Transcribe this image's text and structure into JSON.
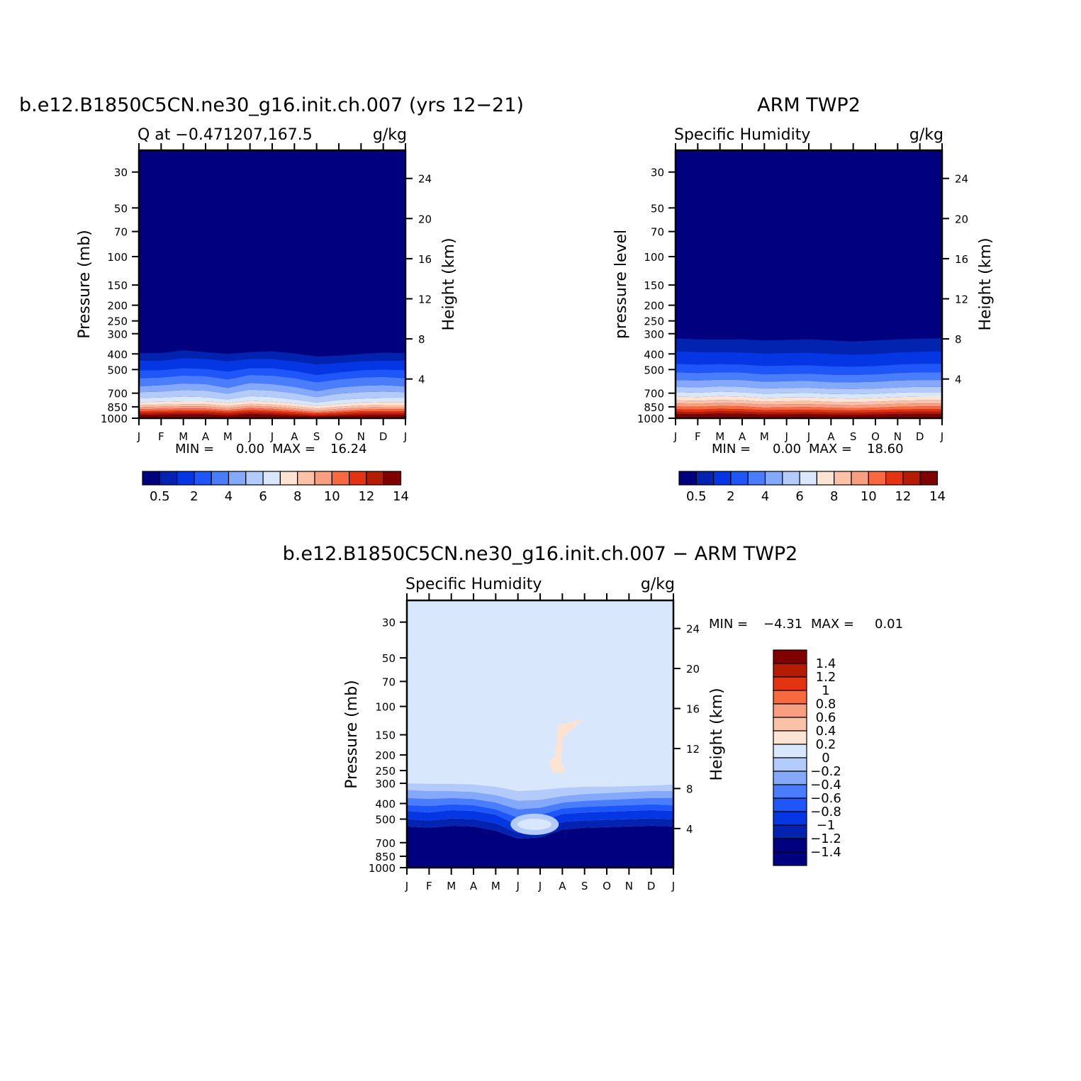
{
  "chart_data": [
    {
      "type": "heatmap",
      "title": "b.e12.B1850C5CN.ne30_g16.init.ch.007 (yrs 12−21)",
      "subtitle_left": "Q at −0.471207,167.5",
      "subtitle_right": "g/kg",
      "xlabel": "",
      "ylabel": "Pressure (mb)",
      "ylabel_right": "Height (km)",
      "x_ticks": [
        "J",
        "F",
        "M",
        "A",
        "M",
        "J",
        "J",
        "A",
        "S",
        "O",
        "N",
        "D",
        "J"
      ],
      "y_ticks": [
        30,
        50,
        70,
        100,
        150,
        200,
        250,
        300,
        400,
        500,
        700,
        850,
        1000
      ],
      "y_right_ticks": [
        24,
        20,
        16,
        12,
        8,
        4
      ],
      "y_scale": "log",
      "ylim": [
        1000,
        22
      ],
      "stats": {
        "min_label": "MIN =",
        "min": "0.00",
        "max_label": "MAX =",
        "max": "16.24"
      },
      "colorbar": {
        "orientation": "horizontal",
        "tick_labels": [
          "0.5",
          "2",
          "4",
          "6",
          "8",
          "10",
          "12",
          "14"
        ]
      },
      "contours_mb": {
        "months": [
          0,
          1,
          2,
          3,
          4,
          5,
          6,
          7,
          8,
          9,
          10,
          11,
          12
        ],
        "q0.5": [
          395,
          395,
          380,
          390,
          400,
          390,
          385,
          398,
          415,
          410,
          400,
          393,
          395
        ],
        "q1": [
          440,
          440,
          425,
          430,
          445,
          430,
          430,
          445,
          465,
          455,
          445,
          440,
          440
        ],
        "q2": [
          505,
          505,
          490,
          495,
          515,
          490,
          490,
          510,
          540,
          520,
          505,
          500,
          505
        ],
        "q3": [
          565,
          560,
          545,
          550,
          575,
          540,
          545,
          565,
          600,
          575,
          560,
          555,
          565
        ],
        "q4": [
          635,
          625,
          610,
          615,
          650,
          605,
          615,
          640,
          680,
          645,
          630,
          625,
          635
        ],
        "q5": [
          690,
          685,
          670,
          675,
          705,
          665,
          675,
          700,
          740,
          705,
          690,
          685,
          690
        ],
        "q6": [
          750,
          745,
          735,
          740,
          765,
          730,
          740,
          765,
          800,
          770,
          755,
          750,
          750
        ],
        "q7": [
          795,
          790,
          785,
          785,
          805,
          780,
          790,
          810,
          840,
          815,
          800,
          795,
          795
        ],
        "q8": [
          830,
          825,
          820,
          820,
          840,
          815,
          825,
          845,
          870,
          850,
          835,
          830,
          830
        ],
        "q9": [
          855,
          850,
          845,
          845,
          865,
          840,
          850,
          870,
          895,
          875,
          860,
          855,
          855
        ],
        "q10": [
          880,
          875,
          870,
          870,
          890,
          865,
          875,
          895,
          915,
          900,
          885,
          880,
          880
        ],
        "q11": [
          905,
          900,
          895,
          895,
          910,
          890,
          900,
          915,
          935,
          920,
          905,
          905,
          905
        ],
        "q12": [
          930,
          925,
          920,
          920,
          935,
          915,
          925,
          940,
          955,
          945,
          930,
          930,
          930
        ],
        "q13": [
          955,
          950,
          945,
          945,
          960,
          940,
          950,
          962,
          972,
          965,
          955,
          955,
          955
        ],
        "q14": [
          975,
          972,
          968,
          968,
          978,
          965,
          972,
          980,
          988,
          983,
          976,
          975,
          975
        ]
      }
    },
    {
      "type": "heatmap",
      "title": "ARM TWP2",
      "subtitle_left": "Specific Humidity",
      "subtitle_right": "g/kg",
      "xlabel": "",
      "ylabel": "pressure level",
      "ylabel_right": "Height (km)",
      "x_ticks": [
        "J",
        "F",
        "M",
        "A",
        "M",
        "J",
        "J",
        "A",
        "S",
        "O",
        "N",
        "D",
        "J"
      ],
      "y_ticks": [
        30,
        50,
        70,
        100,
        150,
        200,
        250,
        300,
        400,
        500,
        700,
        850,
        1000
      ],
      "y_right_ticks": [
        24,
        20,
        16,
        12,
        8,
        4
      ],
      "y_scale": "log",
      "ylim": [
        1000,
        22
      ],
      "stats": {
        "min_label": "MIN =",
        "min": "0.00",
        "max_label": "MAX =",
        "max": "18.60"
      },
      "colorbar": {
        "orientation": "horizontal",
        "tick_labels": [
          "0.5",
          "2",
          "4",
          "6",
          "8",
          "10",
          "12",
          "14"
        ]
      },
      "contours_mb": {
        "months": [
          0,
          1,
          2,
          3,
          4,
          5,
          6,
          7,
          8,
          9,
          10,
          11,
          12
        ],
        "q0.5": [
          320,
          325,
          325,
          325,
          330,
          328,
          325,
          330,
          335,
          330,
          325,
          322,
          320
        ],
        "q1": [
          385,
          390,
          390,
          392,
          398,
          395,
          393,
          400,
          405,
          400,
          392,
          388,
          385
        ],
        "q2": [
          460,
          465,
          462,
          465,
          475,
          472,
          470,
          478,
          480,
          475,
          465,
          460,
          460
        ],
        "q3": [
          520,
          525,
          520,
          522,
          535,
          532,
          530,
          538,
          540,
          535,
          525,
          520,
          520
        ],
        "q4": [
          580,
          585,
          578,
          580,
          595,
          590,
          588,
          598,
          600,
          595,
          585,
          580,
          580
        ],
        "q5": [
          640,
          645,
          635,
          640,
          655,
          650,
          648,
          658,
          660,
          655,
          645,
          640,
          640
        ],
        "q6": [
          690,
          695,
          685,
          690,
          705,
          700,
          698,
          708,
          710,
          705,
          695,
          690,
          690
        ],
        "q7": [
          735,
          740,
          730,
          735,
          750,
          745,
          743,
          752,
          755,
          750,
          740,
          735,
          735
        ],
        "q8": [
          775,
          780,
          770,
          775,
          790,
          785,
          783,
          792,
          795,
          790,
          780,
          775,
          775
        ],
        "q9": [
          810,
          815,
          805,
          810,
          825,
          820,
          818,
          826,
          830,
          825,
          815,
          810,
          810
        ],
        "q10": [
          845,
          850,
          840,
          845,
          860,
          855,
          853,
          860,
          865,
          860,
          850,
          845,
          845
        ],
        "q11": [
          880,
          885,
          875,
          880,
          890,
          888,
          886,
          892,
          895,
          890,
          882,
          880,
          880
        ],
        "q12": [
          910,
          915,
          905,
          910,
          920,
          918,
          916,
          922,
          925,
          920,
          912,
          910,
          910
        ],
        "q13": [
          940,
          943,
          935,
          940,
          948,
          946,
          944,
          950,
          952,
          948,
          942,
          940,
          940
        ],
        "q14": [
          965,
          968,
          962,
          965,
          972,
          970,
          968,
          973,
          975,
          972,
          966,
          965,
          965
        ]
      }
    },
    {
      "type": "heatmap",
      "title": "b.e12.B1850C5CN.ne30_g16.init.ch.007 − ARM TWP2",
      "subtitle_left": "Specific Humidity",
      "subtitle_right": "g/kg",
      "xlabel": "",
      "ylabel": "Pressure (mb)",
      "ylabel_right": "Height (km)",
      "x_ticks": [
        "J",
        "F",
        "M",
        "A",
        "M",
        "J",
        "J",
        "A",
        "S",
        "O",
        "N",
        "D",
        "J"
      ],
      "y_ticks": [
        30,
        50,
        70,
        100,
        150,
        200,
        250,
        300,
        400,
        500,
        700,
        850,
        1000
      ],
      "y_right_ticks": [
        24,
        20,
        16,
        12,
        8,
        4
      ],
      "y_scale": "log",
      "ylim": [
        1000,
        22
      ],
      "stats": {
        "min_label": "MIN =",
        "min": "−4.31",
        "max_label": "MAX =",
        "max": "0.01"
      },
      "colorbar": {
        "orientation": "vertical",
        "tick_labels": [
          "1.4",
          "1.2",
          "1",
          "0.8",
          "0.6",
          "0.4",
          "0.2",
          "0",
          "−0.2",
          "−0.4",
          "−0.6",
          "−0.8",
          "−1",
          "−1.2",
          "−1.4"
        ]
      },
      "contours_mb": {
        "months": [
          0,
          1,
          2,
          3,
          4,
          5,
          6,
          7,
          8,
          9,
          10,
          11,
          12
        ],
        "d-0.2": [
          300,
          302,
          302,
          305,
          315,
          335,
          330,
          320,
          315,
          315,
          312,
          310,
          305
        ],
        "d-0.4": [
          330,
          335,
          335,
          340,
          355,
          385,
          380,
          360,
          350,
          345,
          340,
          335,
          335
        ],
        "d-0.6": [
          370,
          375,
          370,
          375,
          395,
          435,
          425,
          395,
          385,
          380,
          375,
          370,
          370
        ],
        "d-0.8": [
          410,
          415,
          405,
          410,
          435,
          490,
          470,
          430,
          420,
          415,
          410,
          405,
          410
        ],
        "d-1": [
          445,
          455,
          440,
          445,
          470,
          545,
          520,
          465,
          455,
          450,
          445,
          440,
          445
        ],
        "d-1.2": [
          500,
          510,
          495,
          500,
          530,
          610,
          590,
          520,
          510,
          505,
          500,
          495,
          500
        ],
        "d-1.4": [
          555,
          565,
          550,
          555,
          590,
          660,
          650,
          580,
          565,
          560,
          555,
          550,
          555
        ]
      },
      "features": [
        {
          "type": "positive_plume",
          "value_range": "0 to 0.2",
          "months": [
            6.8,
            7.2
          ],
          "pressure_mb": [
            120,
            250
          ]
        },
        {
          "type": "weak_anomaly",
          "value_range": "−0.2 to 0",
          "months": [
            5.0,
            6.5
          ],
          "pressure_mb": [
            500,
            580
          ]
        }
      ]
    }
  ],
  "colors": {
    "scale15": [
      "#01007f",
      "#0223b0",
      "#0536e4",
      "#1f56fa",
      "#4a7dfb",
      "#84a8fa",
      "#b3cbfb",
      "#d8e7fc",
      "#fde4d2",
      "#fbc2a8",
      "#f99e80",
      "#f86940",
      "#e33412",
      "#b51c04",
      "#800000"
    ],
    "diff": {
      "le_-1.4": "#01007f",
      "-1.4_-1.2": "#0223b0",
      "-1.2_-1": "#0536e4",
      "-1_-0.8": "#1f56fa",
      "-0.8_-0.6": "#4a7dfb",
      "-0.6_-0.4": "#84a8fa",
      "-0.4_-0.2": "#b3cbfb",
      "-0.2_0": "#d8e7fc",
      "0_0.2": "#fde4d2",
      "0.2_0.4": "#fbc2a8",
      "0.4_0.6": "#f99e80",
      "0.6_0.8": "#f86940",
      "0.8_1": "#e33412",
      "1_1.2": "#b51c04",
      "ge_1.4": "#800000"
    }
  }
}
